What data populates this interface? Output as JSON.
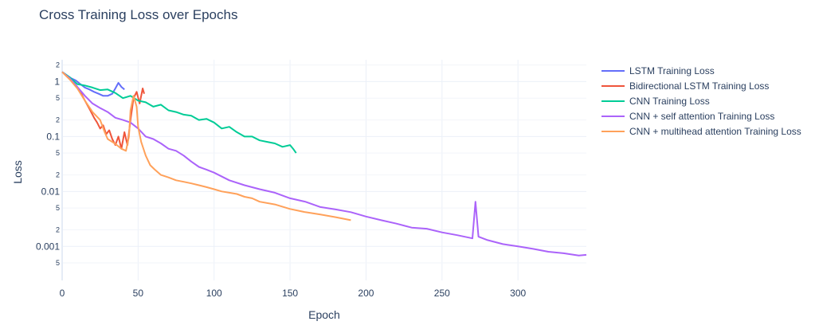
{
  "chart_data": {
    "type": "line",
    "title": "Cross Training Loss over Epochs",
    "xlabel": "Epoch",
    "ylabel": "Loss",
    "xlim": [
      0,
      345
    ],
    "ylim": [
      0.00024,
      2.5
    ],
    "yscale": "log",
    "grid": true,
    "legend_position": "right",
    "x_ticks": [
      0,
      50,
      100,
      150,
      200,
      250,
      300
    ],
    "y_major_ticks": [
      {
        "value": 1,
        "label": "1"
      },
      {
        "value": 0.1,
        "label": "0.1"
      },
      {
        "value": 0.01,
        "label": "0.01"
      },
      {
        "value": 0.001,
        "label": "0.001"
      }
    ],
    "y_minor_ticks": [
      {
        "value": 2,
        "label": "2"
      },
      {
        "value": 0.5,
        "label": "5"
      },
      {
        "value": 0.2,
        "label": "2"
      },
      {
        "value": 0.05,
        "label": "5"
      },
      {
        "value": 0.02,
        "label": "2"
      },
      {
        "value": 0.005,
        "label": "5"
      },
      {
        "value": 0.002,
        "label": "2"
      },
      {
        "value": 0.0005,
        "label": "5"
      }
    ],
    "series": [
      {
        "name": "LSTM Training Loss",
        "color": "#636efa",
        "x": [
          0,
          3,
          6,
          9,
          12,
          15,
          18,
          21,
          24,
          27,
          30,
          33,
          35,
          37,
          39,
          41
        ],
        "y": [
          1.5,
          1.3,
          1.15,
          1.05,
          0.9,
          0.78,
          0.72,
          0.65,
          0.6,
          0.55,
          0.55,
          0.6,
          0.75,
          0.95,
          0.8,
          0.72
        ]
      },
      {
        "name": "Bidirectional LSTM Training Loss",
        "color": "#ef553b",
        "x": [
          0,
          3,
          6,
          9,
          12,
          15,
          18,
          21,
          23,
          25,
          27,
          29,
          31,
          33,
          35,
          37,
          39,
          41,
          43,
          45,
          47,
          49,
          51,
          53,
          54
        ],
        "y": [
          1.5,
          1.25,
          1.05,
          0.85,
          0.65,
          0.45,
          0.32,
          0.22,
          0.18,
          0.14,
          0.16,
          0.11,
          0.13,
          0.09,
          0.07,
          0.1,
          0.06,
          0.12,
          0.07,
          0.2,
          0.5,
          0.65,
          0.4,
          0.75,
          0.6
        ]
      },
      {
        "name": "CNN Training Loss",
        "color": "#00cc96",
        "x": [
          0,
          5,
          10,
          15,
          20,
          25,
          30,
          35,
          40,
          45,
          50,
          55,
          60,
          65,
          70,
          75,
          80,
          85,
          90,
          95,
          100,
          105,
          110,
          115,
          120,
          125,
          130,
          135,
          140,
          145,
          150,
          152,
          154
        ],
        "y": [
          1.5,
          1.2,
          0.9,
          0.85,
          0.78,
          0.7,
          0.72,
          0.62,
          0.5,
          0.55,
          0.45,
          0.42,
          0.35,
          0.38,
          0.3,
          0.28,
          0.25,
          0.24,
          0.2,
          0.21,
          0.18,
          0.14,
          0.15,
          0.12,
          0.1,
          0.1,
          0.085,
          0.08,
          0.075,
          0.065,
          0.07,
          0.06,
          0.05
        ]
      },
      {
        "name": "CNN + self attention Training Loss",
        "color": "#ab63fa",
        "x": [
          0,
          5,
          10,
          15,
          20,
          25,
          30,
          35,
          40,
          45,
          50,
          55,
          60,
          65,
          70,
          75,
          80,
          85,
          90,
          95,
          100,
          110,
          120,
          130,
          140,
          150,
          160,
          170,
          180,
          190,
          200,
          210,
          220,
          230,
          240,
          250,
          260,
          270,
          272,
          274,
          280,
          290,
          300,
          310,
          320,
          330,
          340,
          345
        ],
        "y": [
          1.5,
          1.15,
          0.8,
          0.55,
          0.4,
          0.33,
          0.28,
          0.22,
          0.2,
          0.18,
          0.14,
          0.1,
          0.09,
          0.075,
          0.06,
          0.055,
          0.045,
          0.035,
          0.028,
          0.025,
          0.022,
          0.016,
          0.013,
          0.011,
          0.0095,
          0.0075,
          0.0065,
          0.0052,
          0.0047,
          0.0042,
          0.0035,
          0.003,
          0.0026,
          0.0022,
          0.0021,
          0.0018,
          0.0016,
          0.0014,
          0.0065,
          0.0015,
          0.0013,
          0.0011,
          0.001,
          0.0009,
          0.0008,
          0.00075,
          0.00068,
          0.0007
        ]
      },
      {
        "name": "CNN + multihead attention Training Loss",
        "color": "#ffa15a",
        "x": [
          0,
          5,
          10,
          15,
          20,
          25,
          28,
          30,
          33,
          36,
          39,
          42,
          44,
          45,
          47,
          49,
          50,
          52,
          55,
          58,
          61,
          65,
          70,
          75,
          80,
          85,
          90,
          95,
          100,
          105,
          110,
          115,
          120,
          125,
          130,
          140,
          150,
          160,
          170,
          180,
          190
        ],
        "y": [
          1.5,
          1.1,
          0.75,
          0.45,
          0.28,
          0.2,
          0.12,
          0.09,
          0.08,
          0.07,
          0.06,
          0.055,
          0.1,
          0.3,
          0.55,
          0.35,
          0.15,
          0.08,
          0.045,
          0.03,
          0.025,
          0.02,
          0.018,
          0.016,
          0.015,
          0.014,
          0.013,
          0.012,
          0.011,
          0.01,
          0.0095,
          0.009,
          0.008,
          0.0075,
          0.0065,
          0.0058,
          0.0048,
          0.0042,
          0.0038,
          0.0034,
          0.003
        ]
      }
    ]
  }
}
